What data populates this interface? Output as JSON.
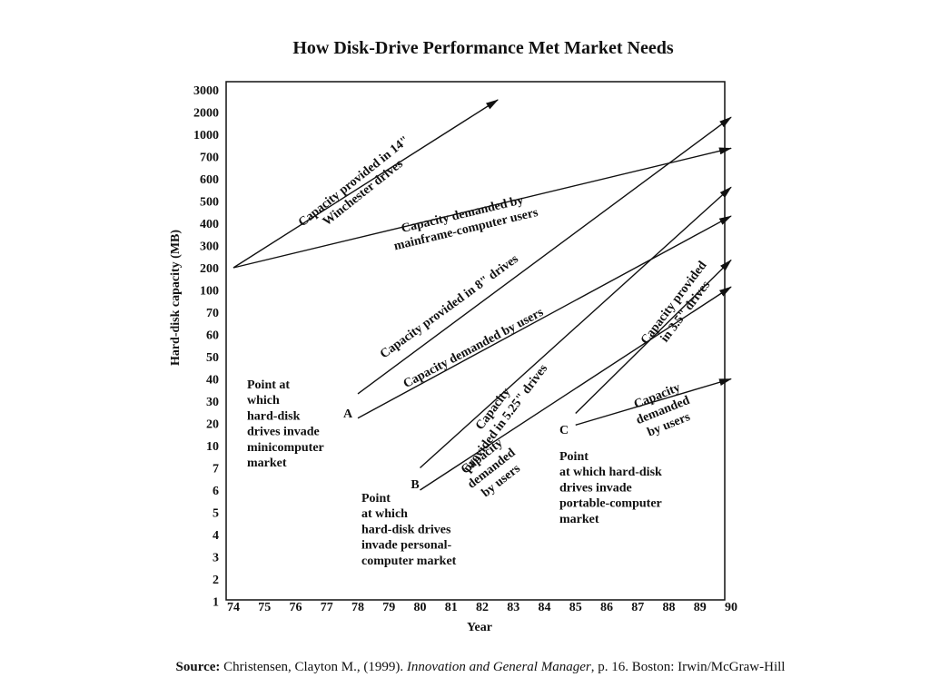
{
  "title": "How Disk-Drive Performance Met Market Needs",
  "source": {
    "label": "Source:",
    "text_before": " Christensen, Clayton M., (1999). ",
    "italic": "Innovation and General Manager",
    "text_after": ", p. 16. Boston: Irwin/McGraw-Hill"
  },
  "chart_data": {
    "type": "line",
    "xlabel": "Year",
    "ylabel": "Hard-disk capacity (MB)",
    "xlim": [
      74,
      90
    ],
    "ylim": [
      1,
      3000
    ],
    "xticks": [
      "74",
      "75",
      "76",
      "77",
      "78",
      "79",
      "80",
      "81",
      "82",
      "83",
      "84",
      "85",
      "86",
      "87",
      "88",
      "89",
      "90"
    ],
    "yticks": [
      "1",
      "2",
      "3",
      "4",
      "5",
      "6",
      "7",
      "10",
      "20",
      "30",
      "40",
      "50",
      "60",
      "70",
      "100",
      "200",
      "300",
      "400",
      "500",
      "600",
      "700",
      "1000",
      "2000",
      "3000"
    ],
    "y_scale": "categorical-log (tick labels evenly spaced)",
    "series": [
      {
        "name": "Capacity provided in 14\" Winchester drives",
        "x": [
          74,
          82.5
        ],
        "y": [
          200,
          2500
        ]
      },
      {
        "name": "Capacity demanded by mainframe-computer users",
        "x": [
          74,
          90
        ],
        "y": [
          200,
          800
        ]
      },
      {
        "name": "Capacity provided in 8\" drives",
        "x": [
          78,
          90
        ],
        "y": [
          33,
          1700
        ]
      },
      {
        "name": "Capacity demanded by users",
        "x": [
          78,
          90
        ],
        "y": [
          22,
          430
        ]
      },
      {
        "name": "Capacity provided in 5.25\" drives",
        "x": [
          80,
          90
        ],
        "y": [
          7,
          560
        ]
      },
      {
        "name": "Capacity demanded by users",
        "x": [
          80,
          90
        ],
        "y": [
          6,
          110
        ]
      },
      {
        "name": "Capacity provided in 3.5\" drives",
        "x": [
          85,
          90
        ],
        "y": [
          24,
          230
        ]
      },
      {
        "name": "Capacity demanded by users",
        "x": [
          85,
          90
        ],
        "y": [
          19,
          40
        ]
      }
    ],
    "annotations": [
      {
        "label": "Capacity provided in 14\"",
        "label2": "Winchester drives"
      },
      {
        "label": "Capacity demanded by",
        "label2": "mainframe-computer users"
      },
      {
        "label": "Capacity provided in 8\"  drives"
      },
      {
        "label": "Capacity demanded by users"
      },
      {
        "label": "Capacity",
        "label2": "provided in 5.25\" drives"
      },
      {
        "label": "Capacity",
        "label2": "demanded",
        "label3": "by users"
      },
      {
        "label": "Capacity provided",
        "label2": "in 3.5\" drives"
      },
      {
        "label": "Capacity",
        "label2": "demanded",
        "label3": "by users"
      },
      {
        "label": "A"
      },
      {
        "label": "B"
      },
      {
        "label": "C"
      }
    ],
    "notes": [
      {
        "lines": [
          "Point at",
          "which",
          "hard-disk",
          "drives invade",
          "minicomputer",
          "market"
        ]
      },
      {
        "lines": [
          "Point",
          "at which",
          "hard-disk drives",
          "invade personal-",
          "computer market"
        ]
      },
      {
        "lines": [
          "Point",
          "at which hard-disk",
          "drives invade",
          "portable-computer",
          "market"
        ]
      }
    ],
    "grid": false,
    "legend": "none"
  }
}
